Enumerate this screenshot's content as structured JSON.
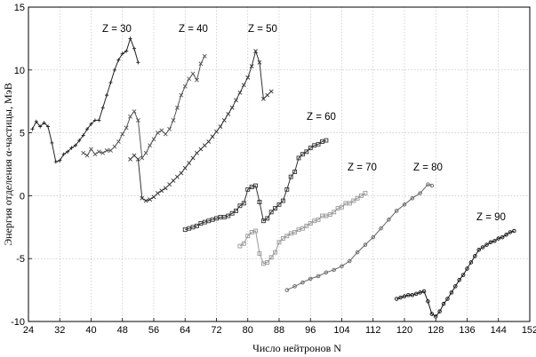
{
  "chart_data": {
    "type": "line",
    "xlabel": "Число нейтронов N",
    "ylabel": "Энергия отделения α-частицы, МэВ",
    "xlim": [
      24,
      152
    ],
    "ylim": [
      -10,
      15
    ],
    "xticks": [
      24,
      32,
      40,
      48,
      56,
      64,
      72,
      80,
      88,
      96,
      104,
      112,
      120,
      128,
      136,
      144,
      152
    ],
    "yticks": [
      -10,
      -5,
      0,
      5,
      10,
      15
    ],
    "grid": true,
    "annotations": [
      "Z = 30",
      "Z = 40",
      "Z = 50",
      "Z = 60",
      "Z = 70",
      "Z = 80",
      "Z = 90"
    ],
    "series": [
      {
        "name": "Z = 30",
        "color": "#222222",
        "marker": "plus",
        "x": [
          25,
          26,
          27,
          28,
          29,
          30,
          31,
          32,
          33,
          34,
          35,
          36,
          37,
          38,
          39,
          40,
          41,
          42,
          43,
          44,
          45,
          46,
          47,
          48,
          49,
          50,
          51,
          52
        ],
        "y": [
          5.3,
          5.9,
          5.5,
          5.8,
          5.5,
          4.2,
          2.7,
          2.8,
          3.3,
          3.5,
          3.8,
          4.0,
          4.4,
          4.8,
          5.3,
          5.7,
          6.0,
          6.0,
          7.0,
          8.0,
          9.0,
          10.0,
          10.8,
          11.3,
          11.5,
          12.5,
          11.7,
          10.6
        ]
      },
      {
        "name": "Z = 40",
        "color": "#555555",
        "marker": "x",
        "x": [
          38,
          39,
          40,
          41,
          42,
          43,
          44,
          45,
          46,
          47,
          48,
          49,
          50,
          51,
          52,
          53,
          54,
          55,
          56,
          57,
          58,
          59,
          60,
          61,
          62,
          63,
          64,
          65,
          66,
          67,
          68,
          69
        ],
        "y": [
          3.4,
          3.2,
          3.7,
          3.3,
          3.5,
          3.4,
          3.6,
          3.6,
          3.9,
          4.3,
          4.9,
          5.4,
          6.3,
          6.7,
          6.0,
          3.0,
          3.4,
          4.0,
          4.5,
          5.0,
          5.2,
          4.9,
          5.3,
          6.0,
          7.0,
          8.0,
          8.7,
          9.3,
          9.7,
          9.2,
          10.5,
          11.1
        ]
      },
      {
        "name": "Z = 50",
        "color": "#333333",
        "marker": "x",
        "x": [
          50,
          51,
          52,
          53,
          54,
          55,
          56,
          57,
          58,
          59,
          60,
          61,
          62,
          63,
          64,
          65,
          66,
          67,
          68,
          69,
          70,
          71,
          72,
          73,
          74,
          75,
          76,
          77,
          78,
          79,
          80,
          81,
          82,
          83,
          84,
          85,
          86
        ],
        "y": [
          2.9,
          3.2,
          2.9,
          -0.2,
          -0.4,
          -0.3,
          -0.1,
          0.2,
          0.4,
          0.6,
          0.9,
          1.2,
          1.5,
          1.8,
          2.2,
          2.6,
          3.0,
          3.4,
          3.7,
          4.0,
          4.3,
          4.7,
          5.1,
          5.5,
          6.0,
          6.5,
          7.0,
          7.6,
          8.2,
          8.8,
          9.4,
          10.3,
          11.5,
          10.6,
          7.7,
          8.0,
          8.3
        ]
      },
      {
        "name": "Z = 60",
        "color": "#333333",
        "marker": "square",
        "x": [
          64,
          65,
          66,
          67,
          68,
          69,
          70,
          71,
          72,
          73,
          74,
          75,
          76,
          77,
          78,
          79,
          80,
          81,
          82,
          83,
          84,
          85,
          86,
          87,
          88,
          89,
          90,
          91,
          92,
          93,
          94,
          95,
          96,
          97,
          98,
          99,
          100
        ],
        "y": [
          -2.7,
          -2.6,
          -2.5,
          -2.4,
          -2.2,
          -2.1,
          -2.0,
          -1.9,
          -1.8,
          -1.7,
          -1.7,
          -1.6,
          -1.4,
          -1.2,
          -0.8,
          -0.6,
          0.5,
          0.7,
          0.8,
          -0.5,
          -2.0,
          -1.8,
          -1.3,
          -1.0,
          -0.7,
          -0.4,
          0.5,
          1.5,
          1.9,
          3.0,
          3.3,
          3.5,
          3.8,
          4.0,
          4.1,
          4.3,
          4.4
        ]
      },
      {
        "name": "Z = 70",
        "color": "#999999",
        "marker": "square",
        "x": [
          78,
          79,
          80,
          81,
          82,
          83,
          84,
          85,
          86,
          87,
          88,
          89,
          90,
          91,
          92,
          93,
          94,
          95,
          96,
          97,
          98,
          99,
          100,
          101,
          102,
          103,
          104,
          105,
          106,
          107,
          108,
          109,
          110
        ],
        "y": [
          -4.0,
          -3.8,
          -3.2,
          -2.9,
          -2.8,
          -4.6,
          -5.4,
          -5.3,
          -4.9,
          -4.5,
          -3.7,
          -3.4,
          -3.2,
          -3.0,
          -2.9,
          -2.7,
          -2.6,
          -2.4,
          -2.2,
          -2.0,
          -1.9,
          -1.6,
          -1.6,
          -1.5,
          -1.3,
          -1.0,
          -0.9,
          -0.6,
          -0.6,
          -0.4,
          -0.2,
          0.0,
          0.2
        ]
      },
      {
        "name": "Z = 80",
        "color": "#666666",
        "marker": "circle",
        "x": [
          90,
          92,
          94,
          96,
          98,
          100,
          102,
          104,
          106,
          108,
          110,
          112,
          114,
          116,
          118,
          120,
          122,
          124,
          126,
          127
        ],
        "y": [
          -7.5,
          -7.2,
          -6.9,
          -6.6,
          -6.4,
          -6.1,
          -5.9,
          -5.6,
          -5.2,
          -4.5,
          -3.9,
          -3.3,
          -2.6,
          -1.9,
          -1.2,
          -0.7,
          -0.2,
          0.2,
          0.9,
          0.8
        ]
      },
      {
        "name": "Z = 90",
        "color": "#111111",
        "marker": "circle",
        "x": [
          118,
          119,
          120,
          121,
          122,
          123,
          124,
          125,
          126,
          127,
          128,
          129,
          130,
          131,
          132,
          133,
          134,
          135,
          136,
          137,
          138,
          139,
          140,
          141,
          142,
          143,
          144,
          145,
          146,
          147,
          148
        ],
        "y": [
          -8.2,
          -8.1,
          -8.0,
          -7.9,
          -7.9,
          -7.8,
          -7.7,
          -7.6,
          -8.4,
          -9.4,
          -9.6,
          -9.2,
          -8.6,
          -8.2,
          -7.7,
          -7.2,
          -6.7,
          -6.3,
          -5.8,
          -5.3,
          -4.8,
          -4.3,
          -4.1,
          -3.9,
          -3.7,
          -3.6,
          -3.4,
          -3.3,
          -3.1,
          -2.9,
          -2.8
        ]
      }
    ]
  }
}
